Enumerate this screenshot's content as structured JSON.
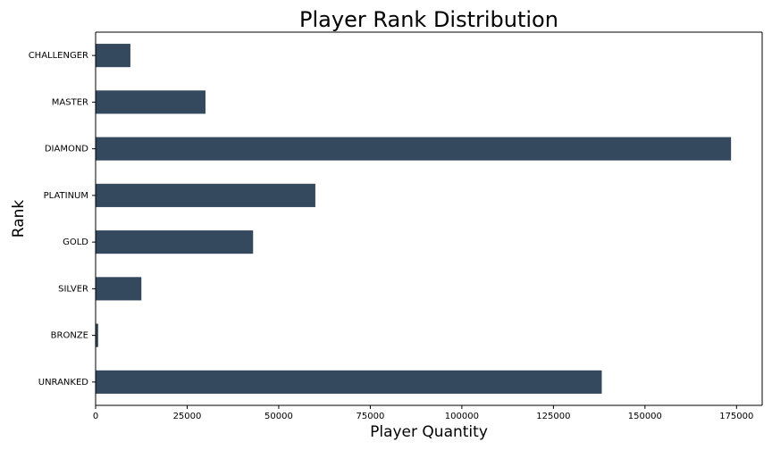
{
  "chart_data": {
    "type": "bar",
    "orientation": "horizontal",
    "title": "Player Rank Distribution",
    "xlabel": "Player Quantity",
    "ylabel": "Rank",
    "categories": [
      "CHALLENGER",
      "MASTER",
      "DIAMOND",
      "PLATINUM",
      "GOLD",
      "SILVER",
      "BRONZE",
      "UNRANKED"
    ],
    "values": [
      9500,
      30000,
      173500,
      60000,
      43000,
      12500,
      700,
      138200
    ],
    "xlim": [
      0,
      182000
    ],
    "xticks": [
      0,
      25000,
      50000,
      75000,
      100000,
      125000,
      150000,
      175000
    ],
    "xtick_labels": [
      "0",
      "25000",
      "50000",
      "75000",
      "100000",
      "125000",
      "150000",
      "175000"
    ],
    "bar_color": "#34495e",
    "grid": false,
    "legend": "none"
  }
}
